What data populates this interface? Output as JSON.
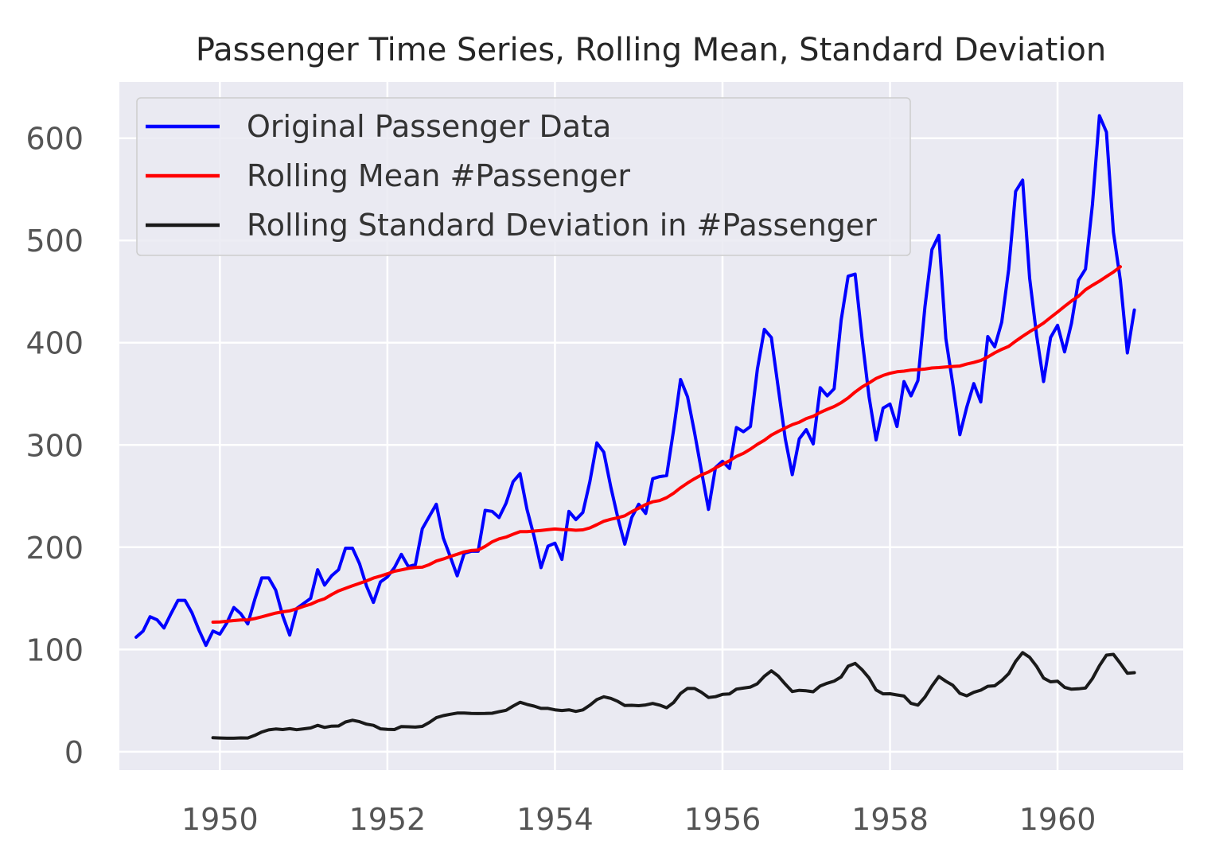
{
  "chart_data": {
    "type": "line",
    "title": "Passenger Time Series, Rolling Mean, Standard Deviation",
    "xlabel": "",
    "ylabel": "",
    "xlim": [
      1948.8,
      1961.5
    ],
    "ylim": [
      -18,
      655
    ],
    "x_ticks": [
      1950,
      1952,
      1954,
      1956,
      1958,
      1960
    ],
    "x_tick_labels": [
      "1950",
      "1952",
      "1954",
      "1956",
      "1958",
      "1960"
    ],
    "y_ticks": [
      0,
      100,
      200,
      300,
      400,
      500,
      600
    ],
    "y_tick_labels": [
      "0",
      "100",
      "200",
      "300",
      "400",
      "500",
      "600"
    ],
    "grid": true,
    "legend_position": "top-left",
    "x_start": 1949.0,
    "x_step": 0.083333,
    "series": [
      {
        "name": "Original Passenger Data",
        "color": "#0000ff",
        "values": [
          112,
          118,
          132,
          129,
          121,
          135,
          148,
          148,
          136,
          119,
          104,
          118,
          115,
          126,
          141,
          135,
          125,
          149,
          170,
          170,
          158,
          133,
          114,
          140,
          145,
          150,
          178,
          163,
          172,
          178,
          199,
          199,
          184,
          162,
          146,
          166,
          171,
          180,
          193,
          181,
          183,
          218,
          230,
          242,
          209,
          191,
          172,
          194,
          196,
          196,
          236,
          235,
          229,
          243,
          264,
          272,
          237,
          211,
          180,
          201,
          204,
          188,
          235,
          227,
          234,
          264,
          302,
          293,
          259,
          229,
          203,
          229,
          242,
          233,
          267,
          269,
          270,
          315,
          364,
          347,
          312,
          274,
          237,
          278,
          284,
          277,
          317,
          313,
          318,
          374,
          413,
          405,
          355,
          306,
          271,
          306,
          315,
          301,
          356,
          348,
          355,
          422,
          465,
          467,
          404,
          347,
          305,
          336,
          340,
          318,
          362,
          348,
          363,
          435,
          491,
          505,
          404,
          359,
          310,
          337,
          360,
          342,
          406,
          396,
          420,
          472,
          548,
          559,
          463,
          407,
          362,
          405,
          417,
          391,
          419,
          461,
          472,
          535,
          622,
          606,
          508,
          461,
          390,
          432
        ]
      },
      {
        "name": "Rolling Mean #Passenger",
        "color": "#ff0000",
        "values": [
          null,
          null,
          null,
          null,
          null,
          null,
          null,
          null,
          null,
          null,
          null,
          126.7,
          126.9,
          127.6,
          128.3,
          128.8,
          129.0,
          130.2,
          131.9,
          133.8,
          135.6,
          136.8,
          137.8,
          139.8,
          142.2,
          144.2,
          147.3,
          149.6,
          153.6,
          157.3,
          159.8,
          162.3,
          164.7,
          167.1,
          169.8,
          171.8,
          174.0,
          176.5,
          177.8,
          179.3,
          180.2,
          180.5,
          183.0,
          186.5,
          188.5,
          190.9,
          193.1,
          195.4,
          196.8,
          197.2,
          200.8,
          205.2,
          208.2,
          209.9,
          212.7,
          215.2,
          215.2,
          215.8,
          216.4,
          217.1,
          217.8,
          217.3,
          217.2,
          216.6,
          217.0,
          218.8,
          222.0,
          225.4,
          227.3,
          228.8,
          230.7,
          234.7,
          238.1,
          241.8,
          244.4,
          245.6,
          248.5,
          252.8,
          258.1,
          262.8,
          267.0,
          270.7,
          273.5,
          277.6,
          281.1,
          284.6,
          288.8,
          291.8,
          295.9,
          300.6,
          304.6,
          309.6,
          313.3,
          316.6,
          319.8,
          322.2,
          325.8,
          328.1,
          331.8,
          334.8,
          337.6,
          341.3,
          346.0,
          351.8,
          356.7,
          360.7,
          365.0,
          368.0,
          370.1,
          371.6,
          372.2,
          373.3,
          373.7,
          374.2,
          375.3,
          375.7,
          376.3,
          376.8,
          377.2,
          379.1,
          380.7,
          382.6,
          386.0,
          390.1,
          393.5,
          396.4,
          401.5,
          406.3,
          410.8,
          414.8,
          419.2,
          424.7,
          430.0,
          435.5,
          440.8,
          445.5,
          451.8,
          456.1,
          460.2,
          464.7,
          469.1,
          474.3
        ]
      },
      {
        "name": "Rolling Standard Deviation in #Passenger",
        "color": "#1a1a1a",
        "values": [
          null,
          null,
          null,
          null,
          null,
          null,
          null,
          null,
          null,
          null,
          null,
          13.7,
          13.4,
          13.2,
          13.2,
          13.5,
          13.4,
          16.0,
          19.3,
          21.4,
          22.2,
          21.7,
          22.5,
          21.5,
          22.4,
          23.2,
          25.8,
          23.8,
          25.0,
          25.2,
          29.1,
          30.8,
          29.4,
          27.0,
          25.8,
          22.4,
          21.9,
          21.7,
          24.6,
          24.4,
          24.1,
          24.8,
          28.6,
          33.3,
          35.3,
          36.6,
          37.8,
          37.8,
          37.4,
          37.3,
          37.4,
          37.6,
          39.1,
          40.5,
          44.6,
          48.4,
          46.3,
          44.6,
          42.4,
          42.4,
          41.0,
          40.3,
          41.0,
          39.4,
          40.9,
          45.5,
          51.0,
          53.7,
          52.2,
          49.2,
          45.2,
          45.4,
          45.0,
          45.7,
          47.2,
          45.6,
          43.0,
          48.1,
          57.0,
          61.9,
          61.8,
          58.0,
          53.0,
          53.8,
          56.1,
          56.5,
          61.2,
          62.2,
          63.2,
          66.5,
          73.8,
          79.1,
          73.9,
          66.1,
          58.9,
          60.0,
          59.6,
          58.6,
          64.3,
          67.0,
          69.1,
          73.1,
          83.6,
          86.4,
          80.2,
          72.1,
          60.4,
          56.6,
          56.7,
          55.5,
          54.4,
          47.3,
          45.6,
          53.4,
          64.2,
          73.6,
          68.9,
          64.9,
          57.1,
          54.7,
          58.1,
          60.2,
          64.0,
          64.5,
          69.6,
          76.4,
          88.3,
          96.9,
          92.3,
          83.4,
          72.0,
          68.4,
          69.0,
          63.0,
          61.1,
          61.5,
          62.3,
          71.5,
          84.1,
          94.4,
          95.2,
          86.3,
          76.8,
          77.3
        ]
      }
    ]
  }
}
